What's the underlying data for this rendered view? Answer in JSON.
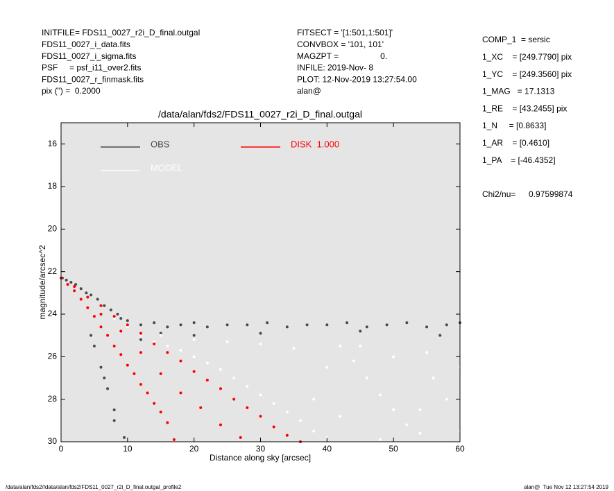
{
  "header": {
    "left": [
      "INITFILE= FDS11_0027_r2i_D_final.outgal",
      "FDS11_0027_i_data.fits",
      "FDS11_0027_i_sigma.fits",
      "PSF     = psf_i11_over2.fits",
      "FDS11_0027_r_finmask.fits",
      "pix (\") =  0.2000"
    ],
    "middle": [
      "FITSECT = '[1:501,1:501]'",
      "CONVBOX = '101, 101'",
      "MAGZPT =                  0.",
      "INFILE: 2019-Nov- 8",
      "PLOT: 12-Nov-2019 13:27:54.00",
      "alan@"
    ],
    "right": [
      "COMP_1  = sersic",
      "1_XC    = [249.7790] pix",
      "1_YC    = [249.3560] pix",
      "1_MAG   = 17.1313",
      "1_RE    = [43.2455] pix",
      "1_N     = [0.8633]",
      "1_AR    = [0.4610]",
      "1_PA    = [-46.4352]"
    ],
    "chi2_label": "Chi2/nu=",
    "chi2_value": "0.97599874"
  },
  "footer": {
    "left": "/data/alan/fds2//data/alan/fds2/FDS11_0027_r2i_D_final.outgal_profile2",
    "right": "alan@  Tue Nov 12 13:27:54 2019"
  },
  "chart_data": {
    "type": "scatter",
    "title": "/data/alan/fds2/FDS11_0027_r2i_D_final.outgal",
    "x_label": "Distance along sky [arcsec]",
    "y_label": "magnitude/arcsec^2",
    "xlim": [
      0,
      60
    ],
    "ylim": [
      30,
      15
    ],
    "xticks": [
      0,
      10,
      20,
      30,
      40,
      50,
      60
    ],
    "yticks": [
      16,
      18,
      20,
      22,
      24,
      26,
      28,
      30
    ],
    "y_inverted": true,
    "series": [
      {
        "name": "OBS",
        "color": "#4a4a4a",
        "x": [
          0.2,
          0.8,
          1.5,
          2.2,
          3.0,
          3.8,
          4.5,
          5.5,
          6.5,
          7.5,
          8.5,
          9.0,
          10,
          12,
          14,
          16,
          18,
          20,
          22,
          25,
          28,
          31,
          34,
          37,
          40,
          43,
          46,
          49,
          52,
          55,
          58,
          60,
          5.0,
          6.0,
          7.0,
          8.0,
          4.5,
          6.5,
          8.0,
          9.5,
          12,
          15,
          20,
          30,
          45,
          57
        ],
        "y": [
          22.3,
          22.4,
          22.5,
          22.6,
          22.8,
          23.0,
          23.1,
          23.3,
          23.6,
          23.8,
          24.0,
          24.2,
          24.3,
          24.5,
          24.4,
          24.6,
          24.5,
          24.4,
          24.6,
          24.5,
          24.5,
          24.4,
          24.6,
          24.5,
          24.5,
          24.4,
          24.6,
          24.5,
          24.4,
          24.6,
          24.5,
          24.4,
          25.5,
          26.5,
          27.5,
          28.5,
          25.0,
          27.0,
          29.0,
          29.8,
          25.2,
          24.9,
          25.0,
          24.9,
          24.8,
          25.0
        ]
      },
      {
        "name": "MODEL",
        "color": "#ffffff",
        "x": [
          8,
          10,
          12,
          14,
          16,
          18,
          20,
          22,
          24,
          26,
          28,
          30,
          32,
          34,
          36,
          38,
          40,
          42,
          44,
          46,
          48,
          50,
          52,
          54,
          56,
          58,
          60,
          15,
          20,
          25,
          30,
          35,
          40,
          45,
          50,
          55,
          60,
          38,
          42,
          48,
          54
        ],
        "y": [
          24.2,
          24.6,
          25.0,
          25.3,
          25.5,
          25.7,
          26.0,
          26.3,
          26.6,
          27.0,
          27.4,
          27.8,
          28.2,
          28.6,
          29.0,
          29.5,
          29.8,
          25.5,
          26.2,
          27.0,
          27.8,
          28.5,
          29.2,
          29.6,
          27.0,
          28.0,
          29.5,
          25.0,
          25.2,
          25.3,
          25.4,
          25.6,
          26.5,
          25.5,
          26.0,
          25.8,
          26.5,
          28.0,
          28.8,
          29.9,
          28.5
        ]
      },
      {
        "name": "DISK  1.000",
        "color": "#ff0000",
        "x": [
          0,
          1,
          2,
          3,
          4,
          5,
          6,
          7,
          8,
          9,
          10,
          11,
          12,
          13,
          14,
          15,
          16,
          17,
          2,
          4,
          6,
          8,
          10,
          12,
          14,
          16,
          18,
          20,
          22,
          24,
          26,
          28,
          30,
          32,
          34,
          36,
          6,
          9,
          12,
          15,
          18,
          21,
          24,
          27
        ],
        "y": [
          22.3,
          22.6,
          22.9,
          23.3,
          23.7,
          24.1,
          24.6,
          25.0,
          25.5,
          25.9,
          26.4,
          26.8,
          27.3,
          27.7,
          28.2,
          28.6,
          29.1,
          29.9,
          22.7,
          23.2,
          23.6,
          24.1,
          24.5,
          24.9,
          25.4,
          25.8,
          26.2,
          26.7,
          27.1,
          27.5,
          28.0,
          28.4,
          28.8,
          29.3,
          29.7,
          30.0,
          24.0,
          24.8,
          25.8,
          26.8,
          27.7,
          28.4,
          29.2,
          29.8
        ]
      }
    ],
    "legend": "upper-left"
  }
}
